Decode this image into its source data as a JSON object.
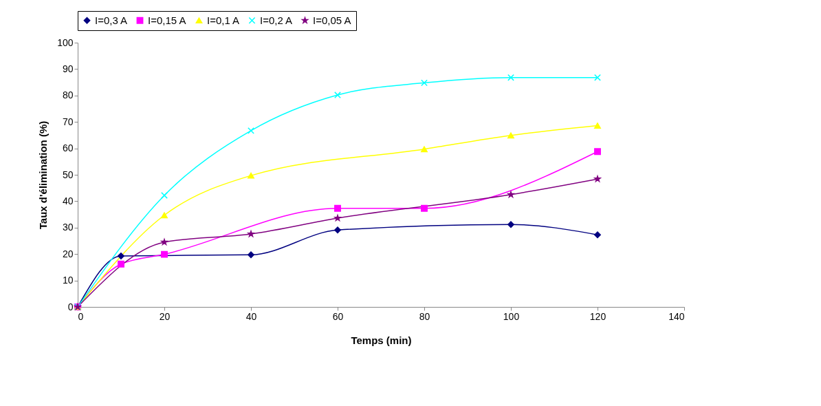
{
  "chart_data": {
    "type": "line",
    "xlabel": "Temps (min)",
    "ylabel": "Taux d'élimination (%)",
    "xlim": [
      0,
      140
    ],
    "ylim": [
      0,
      100
    ],
    "xticks": [
      0,
      20,
      40,
      60,
      80,
      100,
      120,
      140
    ],
    "yticks": [
      0,
      10,
      20,
      30,
      40,
      50,
      60,
      70,
      80,
      90,
      100
    ],
    "legend": "top",
    "series": [
      {
        "name": "I=0,3 A",
        "color": "#000080",
        "marker": "diamond",
        "x": [
          0,
          10,
          40,
          60,
          100,
          120
        ],
        "values": [
          0,
          19.3,
          19.7,
          29.1,
          31.2,
          27.3
        ]
      },
      {
        "name": "I=0,15 A",
        "color": "#ff00ff",
        "marker": "square",
        "x": [
          0,
          10,
          20,
          60,
          80,
          120
        ],
        "values": [
          0,
          16.2,
          19.9,
          37.3,
          37.3,
          58.8
        ]
      },
      {
        "name": "I=0,1 A",
        "color": "#ffff00",
        "marker": "triangle",
        "x": [
          0,
          20,
          40,
          80,
          100,
          120
        ],
        "values": [
          0,
          34.7,
          49.7,
          59.7,
          64.9,
          68.6
        ]
      },
      {
        "name": "I=0,2 A",
        "color": "#00ffff",
        "marker": "cross",
        "x": [
          0,
          20,
          40,
          60,
          80,
          100,
          120
        ],
        "values": [
          0,
          42.2,
          66.7,
          80.2,
          84.8,
          86.8,
          86.8
        ]
      },
      {
        "name": "I=0,05 A",
        "color": "#800080",
        "marker": "star",
        "x": [
          0,
          20,
          40,
          60,
          100,
          120
        ],
        "values": [
          0,
          24.5,
          27.6,
          33.6,
          42.5,
          48.4
        ]
      }
    ]
  }
}
